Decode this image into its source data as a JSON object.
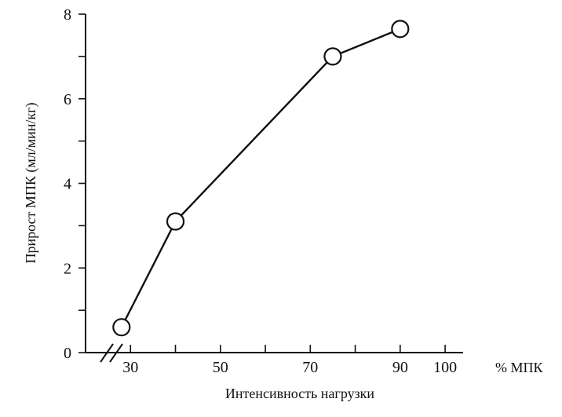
{
  "chart_data": {
    "type": "line",
    "xlabel": "Интенсивность нагрузки",
    "xunit": "% МПК",
    "ylabel": "Прирост МПК  (мл/мин/кг)",
    "x_ticks": [
      {
        "value": 30,
        "label": "30"
      },
      {
        "value": 50,
        "label": "50"
      },
      {
        "value": 70,
        "label": "70"
      },
      {
        "value": 90,
        "label": "90"
      },
      {
        "value": 100,
        "label": "100"
      }
    ],
    "x_minor_ticks": [
      40,
      60,
      80
    ],
    "y_ticks": [
      {
        "value": 0,
        "label": "0"
      },
      {
        "value": 2,
        "label": "2"
      },
      {
        "value": 4,
        "label": "4"
      },
      {
        "value": 6,
        "label": "6"
      },
      {
        "value": 8,
        "label": "8"
      }
    ],
    "y_minor_ticks": [
      1,
      3,
      5,
      7
    ],
    "xlim": [
      20,
      104
    ],
    "ylim": [
      0,
      8
    ],
    "x_axis_break": true,
    "grid": false,
    "series": [
      {
        "x": [
          28,
          40,
          75,
          90
        ],
        "y": [
          0.6,
          3.1,
          7.0,
          7.65
        ],
        "marker": "open-circle"
      }
    ]
  }
}
